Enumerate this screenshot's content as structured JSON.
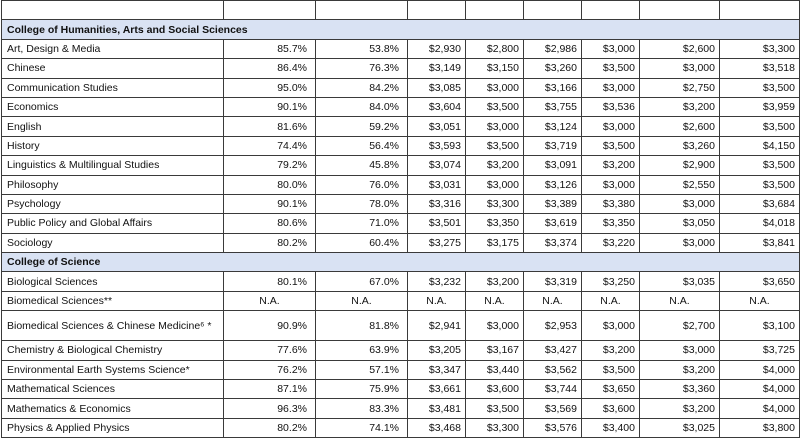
{
  "sections": [
    {
      "title": "College of Humanities, Arts and Social Sciences",
      "rows": [
        {
          "name": "Art, Design & Media",
          "vals": [
            "85.7%",
            "53.8%",
            "$2,930",
            "$2,800",
            "$2,986",
            "$3,000",
            "$2,600",
            "$3,300"
          ]
        },
        {
          "name": "Chinese",
          "vals": [
            "86.4%",
            "76.3%",
            "$3,149",
            "$3,150",
            "$3,260",
            "$3,500",
            "$3,000",
            "$3,518"
          ]
        },
        {
          "name": "Communication Studies",
          "vals": [
            "95.0%",
            "84.2%",
            "$3,085",
            "$3,000",
            "$3,166",
            "$3,000",
            "$2,750",
            "$3,500"
          ]
        },
        {
          "name": "Economics",
          "vals": [
            "90.1%",
            "84.0%",
            "$3,604",
            "$3,500",
            "$3,755",
            "$3,536",
            "$3,200",
            "$3,959"
          ]
        },
        {
          "name": "English",
          "vals": [
            "81.6%",
            "59.2%",
            "$3,051",
            "$3,000",
            "$3,124",
            "$3,000",
            "$2,600",
            "$3,500"
          ]
        },
        {
          "name": "History",
          "vals": [
            "74.4%",
            "56.4%",
            "$3,593",
            "$3,500",
            "$3,719",
            "$3,500",
            "$3,260",
            "$4,150"
          ]
        },
        {
          "name": "Linguistics & Multilingual Studies",
          "vals": [
            "79.2%",
            "45.8%",
            "$3,074",
            "$3,200",
            "$3,091",
            "$3,200",
            "$2,900",
            "$3,500"
          ]
        },
        {
          "name": "Philosophy",
          "vals": [
            "80.0%",
            "76.0%",
            "$3,031",
            "$3,000",
            "$3,126",
            "$3,000",
            "$2,550",
            "$3,500"
          ]
        },
        {
          "name": "Psychology",
          "vals": [
            "90.1%",
            "78.0%",
            "$3,316",
            "$3,300",
            "$3,389",
            "$3,380",
            "$3,000",
            "$3,684"
          ]
        },
        {
          "name": "Public Policy and Global Affairs",
          "vals": [
            "80.6%",
            "71.0%",
            "$3,501",
            "$3,350",
            "$3,619",
            "$3,350",
            "$3,050",
            "$4,018"
          ]
        },
        {
          "name": "Sociology",
          "vals": [
            "80.2%",
            "60.4%",
            "$3,275",
            "$3,175",
            "$3,374",
            "$3,220",
            "$3,000",
            "$3,841"
          ]
        }
      ]
    },
    {
      "title": "College of Science",
      "rows": [
        {
          "name": "Biological Sciences",
          "vals": [
            "80.1%",
            "67.0%",
            "$3,232",
            "$3,200",
            "$3,319",
            "$3,250",
            "$3,035",
            "$3,650"
          ]
        },
        {
          "name": "Biomedical Sciences**",
          "vals": [
            "N.A.",
            "N.A.",
            "N.A.",
            "N.A.",
            "N.A.",
            "N.A.",
            "N.A.",
            "N.A."
          ]
        },
        {
          "name": "Biomedical Sciences & Chinese Medicine⁶ *",
          "tall": true,
          "vals": [
            "90.9%",
            "81.8%",
            "$2,941",
            "$3,000",
            "$2,953",
            "$3,000",
            "$2,700",
            "$3,100"
          ]
        },
        {
          "name": "Chemistry & Biological Chemistry",
          "vals": [
            "77.6%",
            "63.9%",
            "$3,205",
            "$3,167",
            "$3,427",
            "$3,200",
            "$3,000",
            "$3,725"
          ]
        },
        {
          "name": "Environmental Earth Systems Science*",
          "vals": [
            "76.2%",
            "57.1%",
            "$3,347",
            "$3,440",
            "$3,562",
            "$3,500",
            "$3,200",
            "$4,000"
          ]
        },
        {
          "name": "Mathematical Sciences",
          "vals": [
            "87.1%",
            "75.9%",
            "$3,661",
            "$3,600",
            "$3,744",
            "$3,650",
            "$3,360",
            "$4,000"
          ]
        },
        {
          "name": "Mathematics & Economics",
          "vals": [
            "96.3%",
            "83.3%",
            "$3,481",
            "$3,500",
            "$3,569",
            "$3,600",
            "$3,200",
            "$4,000"
          ]
        },
        {
          "name": "Physics & Applied Physics",
          "vals": [
            "80.2%",
            "74.1%",
            "$3,468",
            "$3,300",
            "$3,576",
            "$3,400",
            "$3,025",
            "$3,800"
          ]
        }
      ]
    }
  ]
}
